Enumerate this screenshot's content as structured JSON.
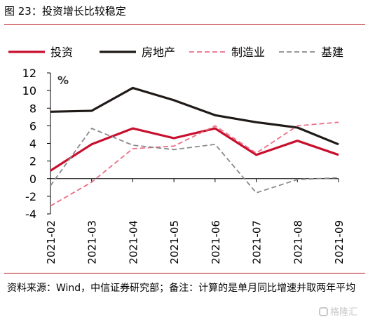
{
  "figure": {
    "title": "图 23：投资增长比较稳定",
    "source_note": "资料来源：Wind，中信证券研究部；备注：计算的是单月同比增速并取两年平均",
    "watermark": "格隆汇"
  },
  "colors": {
    "rule": "#b5151b",
    "axis": "#000000"
  },
  "chart_data": {
    "type": "line",
    "x": [
      "2021-02",
      "2021-03",
      "2021-04",
      "2021-05",
      "2021-06",
      "2021-07",
      "2021-08",
      "2021-09"
    ],
    "unit_label": "%",
    "ylim": [
      -4,
      12
    ],
    "yticks": [
      -4,
      -2,
      0,
      2,
      4,
      6,
      8,
      10,
      12
    ],
    "grid": false,
    "legend_position": "top",
    "series": [
      {
        "name": "投资",
        "color": "#c8102e",
        "dash": "solid",
        "width": 3.2,
        "values": [
          0.9,
          3.9,
          5.7,
          4.6,
          5.7,
          2.7,
          4.3,
          2.7
        ]
      },
      {
        "name": "房地产",
        "color": "#1f1a17",
        "dash": "solid",
        "width": 3.2,
        "values": [
          7.6,
          7.7,
          10.3,
          8.9,
          7.2,
          6.4,
          5.8,
          3.9
        ]
      },
      {
        "name": "制造业",
        "color": "#ec6f86",
        "dash": "dashed",
        "width": 1.8,
        "values": [
          -3.1,
          -0.4,
          3.4,
          3.7,
          6.0,
          2.9,
          6.0,
          6.4
        ]
      },
      {
        "name": "基建",
        "color": "#8a8a8a",
        "dash": "dashed",
        "width": 1.8,
        "values": [
          -0.8,
          5.7,
          3.8,
          3.3,
          3.9,
          -1.6,
          -0.1,
          0.1
        ]
      }
    ]
  }
}
